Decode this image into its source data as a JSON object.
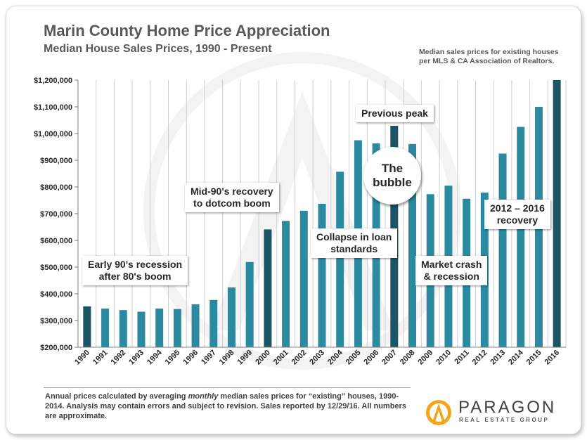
{
  "header": {
    "title": "Marin County Home Price Appreciation",
    "subtitle": "Median House Sales Prices, 1990 - Present",
    "source_line1": "Median sales prices for existing houses",
    "source_line2": "per MLS & CA Association of Realtors."
  },
  "chart_data": {
    "type": "bar",
    "title": "Marin County Home Price Appreciation",
    "subtitle": "Median House Sales Prices, 1990 - Present",
    "xlabel": "",
    "ylabel": "",
    "ylim": [
      200000,
      1200000
    ],
    "y_ticks": [
      200000,
      300000,
      400000,
      500000,
      600000,
      700000,
      800000,
      900000,
      1000000,
      1100000,
      1200000
    ],
    "y_tick_labels": [
      "$200,000",
      "$300,000",
      "$400,000",
      "$500,000",
      "$600,000",
      "$700,000",
      "$800,000",
      "$900,000",
      "$1,000,000",
      "$1,100,000",
      "$1,200,000"
    ],
    "grid": "vertical",
    "categories": [
      "1990",
      "1991",
      "1992",
      "1993",
      "1994",
      "1995",
      "1996",
      "1997",
      "1998",
      "1999",
      "2000",
      "2001",
      "2002",
      "2003",
      "2004",
      "2005",
      "2006",
      "2007",
      "2008",
      "2009",
      "2010",
      "2011",
      "2012",
      "2013",
      "2014",
      "2015",
      "2016"
    ],
    "values": [
      353000,
      345000,
      339000,
      333000,
      345000,
      343000,
      361000,
      377000,
      424000,
      519000,
      641000,
      673000,
      711000,
      737000,
      857000,
      975000,
      963000,
      1029000,
      961000,
      773000,
      805000,
      756000,
      779000,
      925000,
      1025000,
      1100000,
      1200000
    ],
    "highlight_years": [
      "1990",
      "2000",
      "2007",
      "2016"
    ],
    "colors": {
      "bar": "#2b8aa0",
      "highlight": "#1b5565",
      "grid": "#d0d0d0",
      "axis": "#7f7f7f"
    }
  },
  "annotations": {
    "early90s": [
      "Early 90's recession",
      "after 80's boom"
    ],
    "mid90s": [
      "Mid-90's recovery",
      "to dotcom boom"
    ],
    "collapse": [
      "Collapse in loan",
      "standards"
    ],
    "previous_peak": "Previous peak",
    "bubble": [
      "The",
      "bubble"
    ],
    "crash": [
      "Market crash",
      "& recession"
    ],
    "recovery": [
      "2012 – 2016",
      "recovery"
    ]
  },
  "footnote": {
    "part1": "Annual prices calculated by averaging ",
    "part_italic": "monthly",
    "part2": " median sales prices for “existing” houses, 1990-2014.  Analysis may contain errors and subject to revision. Sales reported by 12/29/16.  All numbers are approximate."
  },
  "logo": {
    "name": "PARAGON",
    "tagline": "REAL ESTATE GROUP"
  }
}
